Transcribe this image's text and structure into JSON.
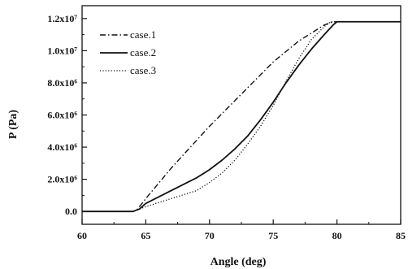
{
  "chart_data": {
    "type": "line",
    "xlabel": "Angle (deg)",
    "ylabel": "P (Pa)",
    "xlim": [
      60,
      85
    ],
    "ylim": [
      -800000,
      12800000
    ],
    "x_ticks": [
      60,
      65,
      70,
      75,
      80,
      85
    ],
    "x_tick_labels": [
      "60",
      "65",
      "70",
      "75",
      "80",
      "85"
    ],
    "y_ticks": [
      0,
      2000000,
      4000000,
      6000000,
      8000000,
      10000000,
      12000000
    ],
    "y_tick_labels": [
      "0.0",
      "2.0x10⁶",
      "4.0x10⁶",
      "6.0x10⁶",
      "8.0x10⁶",
      "1.0x10⁷",
      "1.2x10⁷"
    ],
    "grid": false,
    "legend_position": "top-left",
    "series": [
      {
        "name": "case.1",
        "style": "dash-dot",
        "x": [
          60,
          64,
          64.3,
          65,
          67,
          70,
          73,
          75,
          77,
          78,
          79,
          79.7,
          80,
          85
        ],
        "y": [
          0,
          0,
          100000,
          800000,
          2700000,
          5300000,
          7700000,
          9300000,
          10600000,
          11100000,
          11600000,
          11800000,
          11800000,
          11800000
        ]
      },
      {
        "name": "case.2",
        "style": "solid",
        "x": [
          60,
          64,
          64.5,
          65,
          67,
          69,
          70,
          71,
          72,
          73,
          74,
          75,
          76,
          77,
          78,
          79,
          79.7,
          80,
          85
        ],
        "y": [
          0,
          0,
          150000,
          500000,
          1300000,
          2100000,
          2600000,
          3200000,
          3900000,
          4700000,
          5700000,
          6800000,
          8000000,
          9100000,
          10100000,
          11000000,
          11600000,
          11800000,
          11800000
        ]
      },
      {
        "name": "case.3",
        "style": "dotted",
        "x": [
          60,
          64,
          65,
          67,
          69,
          70,
          71,
          72,
          73,
          74,
          75,
          76,
          77,
          78,
          79,
          79.5,
          80,
          85
        ],
        "y": [
          0,
          0,
          300000,
          800000,
          1300000,
          1800000,
          2400000,
          3200000,
          4200000,
          5300000,
          6600000,
          8100000,
          9500000,
          10700000,
          11500000,
          11800000,
          11800000,
          11800000
        ]
      }
    ]
  }
}
